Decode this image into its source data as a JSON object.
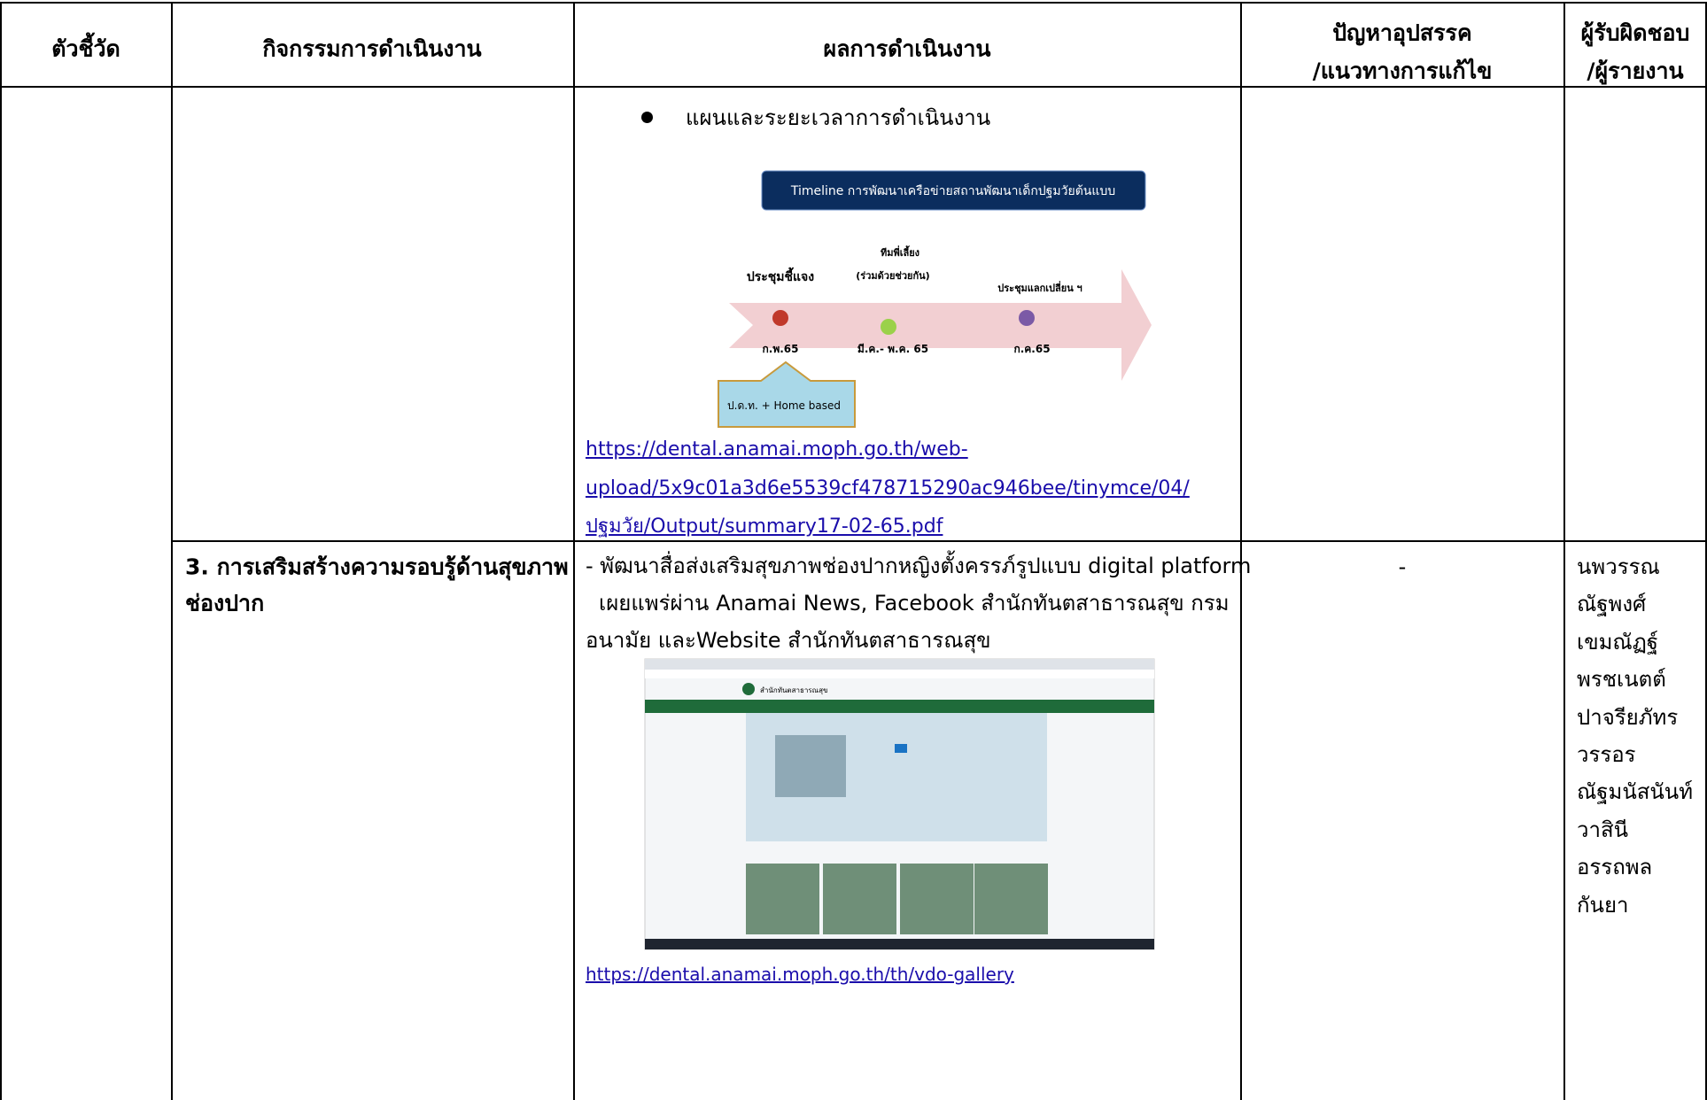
{
  "header": {
    "indicator": "ตัวชี้วัด",
    "activity": "กิจกรรมการดำเนินงาน",
    "result": "ผลการดำเนินงาน",
    "problem": [
      "ปัญหาอุปสรรค",
      "/แนวทางการแก้ไข"
    ],
    "responsible": [
      "ผู้รับผิดชอบ",
      "/ผู้รายงาน"
    ]
  },
  "rows": [
    {
      "result": {
        "bullet": "แผนและระยะเวลาการดำเนินงาน",
        "timeline": {
          "title": "Timeline การพัฒนาเครือข่ายสถานพัฒนาเด็กปฐมวัยต้นแบบ",
          "events": [
            {
              "label": [
                "ประชุมชี้แจง"
              ],
              "date": "ก.พ.65"
            },
            {
              "label": [
                "ทีมพี่เลี้ยง",
                "(ร่วมด้วยช่วยกัน)"
              ],
              "date": "มี.ค.- พ.ค. 65"
            },
            {
              "label": [
                "ประชุมแลกเปลี่ยน ฯ"
              ],
              "date": "ก.ค.65"
            }
          ],
          "base_label": "ป.ด.ท. + Home based"
        },
        "link": [
          "https://dental.anamai.moph.go.th/web-",
          "upload/5x9c01a3d6e5539cf478715290ac946bee/tinymce/04/",
          "ปฐมวัย/Output/summary17-02-65.pdf"
        ]
      }
    },
    {
      "activity": [
        "3. การเสริมสร้างความรอบรู้ด้านสุขภาพ",
        "ช่องปาก"
      ],
      "result": {
        "text": [
          "- พัฒนาสื่อส่งเสริมสุขภาพช่องปากหญิงตั้งครรภ์รูปแบบ digital platform",
          "เผยแพร่ผ่าน  Anamai News, Facebook สำนักทันตสาธารณสุข กรม",
          "อนามัย  และWebsite สำนักทันตสาธารณสุข"
        ],
        "screenshot": {
          "site_name": "สำนักทันตสาธารณสุข"
        },
        "link": "https://dental.anamai.moph.go.th/th/vdo-gallery"
      },
      "problem": "-",
      "responsible": [
        "นพวรรณ",
        "ณัฐพงศ์",
        "เขมณัฏฐ์",
        "พรชเนตต์",
        "ปาจรียภัทร",
        "วรรอร",
        "ณัฐมนัสนันท์",
        "วาสินี",
        "อรรถพล",
        "กันยา"
      ]
    }
  ]
}
